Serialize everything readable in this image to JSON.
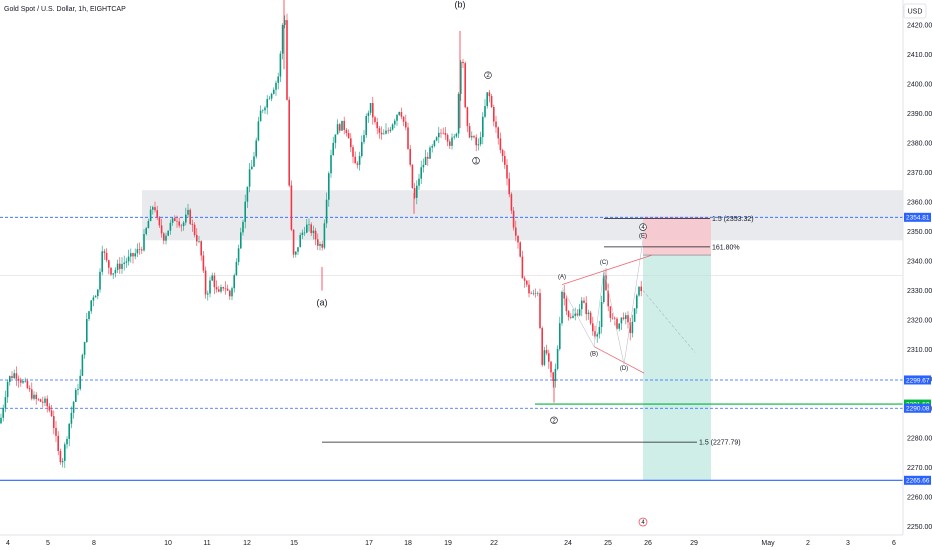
{
  "title": "Gold Spot / U.S. Dollar, 1h, EIGHTCAP",
  "currency": "USD",
  "colors": {
    "up": "#089981",
    "down": "#f23645",
    "blue": "#2962ff",
    "green": "#00b33c",
    "zone": "#e1e3e8",
    "stop": "#f7c6cb",
    "target": "#bfe8df",
    "wedge": "#f06573"
  },
  "chart_data": {
    "type": "candlestick",
    "symbol": "XAUUSD",
    "interval": "1h",
    "ylim": [
      2245,
      2434
    ],
    "xlim": [
      0,
      930
    ],
    "y_ticks": [
      "2250.00",
      "2260.00",
      "2270.00",
      "2280.00",
      "2290.00",
      "2300.00",
      "2310.00",
      "2320.00",
      "2330.00",
      "2340.00",
      "2350.00",
      "2360.00",
      "2370.00",
      "2380.00",
      "2390.00",
      "2400.00",
      "2410.00",
      "2420.00"
    ],
    "x_ticks": [
      {
        "label": "4",
        "x": 8
      },
      {
        "label": "5",
        "x": 48
      },
      {
        "label": "8",
        "x": 94
      },
      {
        "label": "10",
        "x": 168
      },
      {
        "label": "11",
        "x": 207
      },
      {
        "label": "12",
        "x": 247
      },
      {
        "label": "15",
        "x": 294
      },
      {
        "label": "17",
        "x": 369
      },
      {
        "label": "18",
        "x": 408
      },
      {
        "label": "19",
        "x": 448
      },
      {
        "label": "22",
        "x": 494
      },
      {
        "label": "24",
        "x": 568
      },
      {
        "label": "25",
        "x": 608
      },
      {
        "label": "26",
        "x": 648
      },
      {
        "label": "29",
        "x": 694
      },
      {
        "label": "May",
        "x": 768
      },
      {
        "label": "2",
        "x": 808
      },
      {
        "label": "3",
        "x": 848
      },
      {
        "label": "6",
        "x": 894
      }
    ],
    "price_path": [
      [
        0,
        2285
      ],
      [
        8,
        2300
      ],
      [
        15,
        2302
      ],
      [
        25,
        2298
      ],
      [
        35,
        2293
      ],
      [
        45,
        2292
      ],
      [
        52,
        2288
      ],
      [
        58,
        2275
      ],
      [
        62,
        2272
      ],
      [
        68,
        2283
      ],
      [
        74,
        2293
      ],
      [
        80,
        2300
      ],
      [
        86,
        2318
      ],
      [
        92,
        2328
      ],
      [
        98,
        2330
      ],
      [
        102,
        2345
      ],
      [
        106,
        2340
      ],
      [
        112,
        2336
      ],
      [
        118,
        2338
      ],
      [
        126,
        2340
      ],
      [
        134,
        2342
      ],
      [
        142,
        2345
      ],
      [
        148,
        2353
      ],
      [
        154,
        2360
      ],
      [
        158,
        2352
      ],
      [
        164,
        2348
      ],
      [
        170,
        2352
      ],
      [
        176,
        2355
      ],
      [
        182,
        2352
      ],
      [
        188,
        2356
      ],
      [
        194,
        2350
      ],
      [
        200,
        2345
      ],
      [
        206,
        2328
      ],
      [
        212,
        2335
      ],
      [
        218,
        2328
      ],
      [
        224,
        2332
      ],
      [
        230,
        2328
      ],
      [
        236,
        2338
      ],
      [
        240,
        2350
      ],
      [
        244,
        2356
      ],
      [
        248,
        2368
      ],
      [
        252,
        2372
      ],
      [
        256,
        2380
      ],
      [
        260,
        2390
      ],
      [
        266,
        2394
      ],
      [
        272,
        2398
      ],
      [
        278,
        2402
      ],
      [
        282,
        2415
      ],
      [
        284,
        2432
      ],
      [
        286,
        2408
      ],
      [
        290,
        2355
      ],
      [
        294,
        2340
      ],
      [
        300,
        2348
      ],
      [
        306,
        2352
      ],
      [
        312,
        2350
      ],
      [
        318,
        2346
      ],
      [
        322,
        2345
      ],
      [
        326,
        2360
      ],
      [
        330,
        2375
      ],
      [
        336,
        2385
      ],
      [
        342,
        2386
      ],
      [
        348,
        2384
      ],
      [
        354,
        2372
      ],
      [
        360,
        2375
      ],
      [
        366,
        2388
      ],
      [
        370,
        2393
      ],
      [
        376,
        2385
      ],
      [
        382,
        2382
      ],
      [
        388,
        2384
      ],
      [
        394,
        2388
      ],
      [
        400,
        2392
      ],
      [
        406,
        2384
      ],
      [
        410,
        2372
      ],
      [
        414,
        2360
      ],
      [
        420,
        2370
      ],
      [
        426,
        2375
      ],
      [
        432,
        2378
      ],
      [
        438,
        2382
      ],
      [
        444,
        2385
      ],
      [
        450,
        2380
      ],
      [
        456,
        2382
      ],
      [
        460,
        2405
      ],
      [
        462,
        2415
      ],
      [
        466,
        2385
      ],
      [
        472,
        2382
      ],
      [
        478,
        2378
      ],
      [
        484,
        2390
      ],
      [
        488,
        2398
      ],
      [
        494,
        2388
      ],
      [
        500,
        2378
      ],
      [
        506,
        2372
      ],
      [
        512,
        2355
      ],
      [
        518,
        2345
      ],
      [
        522,
        2336
      ],
      [
        528,
        2330
      ],
      [
        534,
        2328
      ],
      [
        538,
        2330
      ],
      [
        542,
        2306
      ],
      [
        546,
        2310
      ],
      [
        550,
        2302
      ],
      [
        554,
        2298
      ],
      [
        558,
        2312
      ],
      [
        562,
        2330
      ],
      [
        566,
        2325
      ],
      [
        570,
        2320
      ],
      [
        576,
        2322
      ],
      [
        582,
        2326
      ],
      [
        588,
        2322
      ],
      [
        594,
        2315
      ],
      [
        600,
        2318
      ],
      [
        604,
        2335
      ],
      [
        608,
        2325
      ],
      [
        612,
        2320
      ],
      [
        618,
        2318
      ],
      [
        624,
        2322
      ],
      [
        630,
        2316
      ],
      [
        636,
        2325
      ],
      [
        640,
        2335
      ],
      [
        643,
        2320
      ]
    ],
    "horizontal_levels": [
      {
        "price": 2354.81,
        "label": "2354.81",
        "style": "dashed",
        "color": "blue"
      },
      {
        "price": 2299.67,
        "label": "2299.67",
        "style": "dashed",
        "color": "blue"
      },
      {
        "price": 2291.5,
        "label": "2291.50",
        "style": "solid",
        "color": "green"
      },
      {
        "price": 2290.08,
        "label": "2290.08",
        "style": "dashed",
        "color": "blue"
      },
      {
        "price": 2265.66,
        "label": "2265.66",
        "style": "solid",
        "color": "blue"
      }
    ],
    "price_tags": [
      "2354.81",
      "2299.67",
      "2291.50",
      "2290.08",
      "2265.66"
    ],
    "resistance_zone": {
      "from": 2347,
      "to": 2364
    },
    "fib_lines": [
      {
        "price": 2354.4,
        "label": "1.5 (2353.32)"
      },
      {
        "price": 2344.8,
        "label": "161.80%"
      },
      {
        "price": 2278.6,
        "label": "1.5 (2277.79)"
      }
    ],
    "position": {
      "entry": 2342,
      "stop": 2355,
      "target": 2265.66,
      "x_start": 643,
      "x_end": 711
    },
    "wave_labels": [
      {
        "text": "(b)",
        "x": 460,
        "price": 2426
      },
      {
        "text": "(a)",
        "x": 322,
        "price": 2325
      },
      {
        "text": "2",
        "x": 488,
        "price": 2403,
        "circled": true
      },
      {
        "text": "1",
        "x": 476,
        "price": 2374,
        "circled": true
      },
      {
        "text": "2",
        "x": 554,
        "price": 2286,
        "circled": true
      },
      {
        "text": "(A)",
        "x": 562,
        "price": 2334
      },
      {
        "text": "(B)",
        "x": 594,
        "price": 2308
      },
      {
        "text": "(C)",
        "x": 604,
        "price": 2339
      },
      {
        "text": "(D)",
        "x": 624,
        "price": 2303
      },
      {
        "text": "4",
        "x": 643,
        "price": 2351.5,
        "circled": true
      },
      {
        "text": "(E)",
        "x": 643,
        "price": 2348
      }
    ],
    "footer_marker": "4"
  }
}
